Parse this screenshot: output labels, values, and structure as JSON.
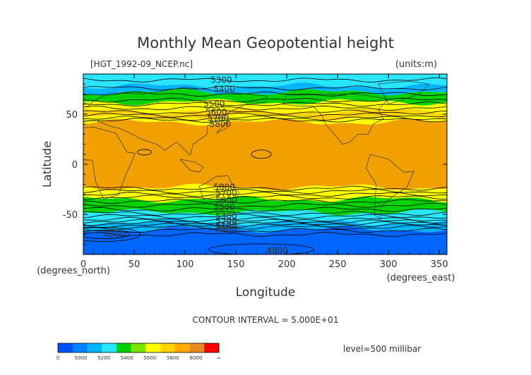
{
  "chart_data": {
    "type": "heatmap",
    "title": "Monthly Mean Geopotential height",
    "source_label": "[HGT_1992-09_NCEP.nc]",
    "units_label": "(units:m)",
    "xlabel": "Longitude",
    "ylabel": "Latitude",
    "x_unit_label": "(degrees_east)",
    "y_unit_label": "(degrees_north)",
    "xlim": [
      0,
      357.5
    ],
    "ylim": [
      -90,
      90
    ],
    "x_ticks": [
      0,
      50,
      100,
      150,
      200,
      250,
      300,
      350
    ],
    "y_ticks": [
      50,
      0,
      -50
    ],
    "contour_interval_label": "CONTOUR INTERVAL = 5.000E+01",
    "level_label": "level=500 millibar",
    "colorbar": {
      "colors": [
        "#0050ff",
        "#0082ff",
        "#00b4ff",
        "#28e6ff",
        "#00d200",
        "#78e600",
        "#ffff00",
        "#ffd200",
        "#ffaa00",
        "#e68c1e",
        "#ff0000"
      ],
      "tick_labels": [
        "0",
        "5000",
        "5200",
        "5400",
        "5600",
        "5800",
        "6000",
        "∞"
      ]
    },
    "contour_labels": [
      {
        "text": "5300",
        "lon": 125,
        "lat": 84
      },
      {
        "text": "5400",
        "lon": 128,
        "lat": 75
      },
      {
        "text": "5500",
        "lon": 118,
        "lat": 60
      },
      {
        "text": "5600",
        "lon": 120,
        "lat": 52
      },
      {
        "text": "5700",
        "lon": 122,
        "lat": 46
      },
      {
        "text": "5800",
        "lon": 124,
        "lat": 40
      },
      {
        "text": "5800",
        "lon": 128,
        "lat": -23
      },
      {
        "text": "5700",
        "lon": 130,
        "lat": -29
      },
      {
        "text": "5600",
        "lon": 130,
        "lat": -36
      },
      {
        "text": "5500",
        "lon": 128,
        "lat": -43
      },
      {
        "text": "5300",
        "lon": 130,
        "lat": -52
      },
      {
        "text": "5200",
        "lon": 130,
        "lat": -57
      },
      {
        "text": "5100",
        "lon": 130,
        "lat": -61
      },
      {
        "text": "4900",
        "lon": 130,
        "lat": -65
      },
      {
        "text": "4800",
        "lon": 20,
        "lat": -70
      },
      {
        "text": "4800",
        "lon": 180,
        "lat": -86
      }
    ],
    "bands": [
      {
        "from": 90,
        "to": 78,
        "color": "#28e6ff"
      },
      {
        "from": 78,
        "to": 72,
        "color": "#00b4ff"
      },
      {
        "from": 72,
        "to": 62,
        "color": "#00d200"
      },
      {
        "from": 62,
        "to": 53,
        "color": "#ffff00"
      },
      {
        "from": 53,
        "to": 47,
        "color": "#ffd200"
      },
      {
        "from": 47,
        "to": 42,
        "color": "#ffff00"
      },
      {
        "from": 42,
        "to": -23,
        "color": "#f0a000"
      },
      {
        "from": -23,
        "to": -35,
        "color": "#ffff00"
      },
      {
        "from": -35,
        "to": -48,
        "color": "#00d200"
      },
      {
        "from": -48,
        "to": -58,
        "color": "#28e6ff"
      },
      {
        "from": -58,
        "to": -65,
        "color": "#00b4ff"
      },
      {
        "from": -65,
        "to": -90,
        "color": "#0064ff"
      }
    ]
  }
}
